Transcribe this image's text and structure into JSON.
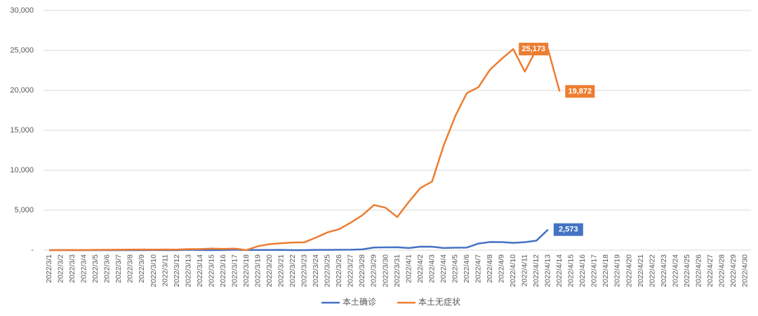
{
  "chart_data": {
    "type": "line",
    "categories": [
      "2022/3/1",
      "2022/3/2",
      "2022/3/3",
      "2022/3/4",
      "2022/3/5",
      "2022/3/6",
      "2022/3/7",
      "2022/3/8",
      "2022/3/9",
      "2022/3/10",
      "2022/3/11",
      "2022/3/12",
      "2022/3/13",
      "2022/3/14",
      "2022/3/15",
      "2022/3/16",
      "2022/3/17",
      "2022/3/18",
      "2022/3/19",
      "2022/3/20",
      "2022/3/21",
      "2022/3/22",
      "2022/3/23",
      "2022/3/24",
      "2022/3/25",
      "2022/3/26",
      "2022/3/27",
      "2022/3/28",
      "2022/3/29",
      "2022/3/30",
      "2022/3/31",
      "2022/4/1",
      "2022/4/2",
      "2022/4/3",
      "2022/4/4",
      "2022/4/5",
      "2022/4/6",
      "2022/4/7",
      "2022/4/8",
      "2022/4/9",
      "2022/4/10",
      "2022/4/11",
      "2022/4/12",
      "2022/4/13",
      "2022/4/14",
      "2022/4/15",
      "2022/4/16",
      "2022/4/17",
      "2022/4/18",
      "2022/4/19",
      "2022/4/20",
      "2022/4/21",
      "2022/4/22",
      "2022/4/23",
      "2022/4/24",
      "2022/4/25",
      "2022/4/26",
      "2022/4/27",
      "2022/4/28",
      "2022/4/29",
      "2022/4/30"
    ],
    "series": [
      {
        "name": "本土确诊",
        "color": "#4472c4",
        "values": [
          2,
          8,
          2,
          3,
          2,
          3,
          3,
          3,
          4,
          11,
          5,
          1,
          41,
          9,
          5,
          8,
          57,
          8,
          17,
          24,
          31,
          4,
          4,
          29,
          38,
          45,
          50,
          96,
          326,
          355,
          358,
          260,
          438,
          425,
          268,
          311,
          322,
          824,
          1015,
          1006,
          914,
          994,
          1189,
          2573,
          null,
          null,
          null,
          null,
          null,
          null,
          null,
          null,
          null,
          null,
          null,
          null,
          null,
          null,
          null,
          null,
          null
        ],
        "value_labels": [
          null,
          null,
          null,
          null,
          null,
          null,
          null,
          null,
          null,
          null,
          null,
          null,
          null,
          null,
          null,
          null,
          null,
          null,
          null,
          null,
          null,
          null,
          null,
          null,
          null,
          null,
          null,
          null,
          null,
          null,
          null,
          null,
          null,
          null,
          null,
          null,
          null,
          null,
          null,
          null,
          null,
          null,
          null,
          "2,573",
          null,
          null,
          null,
          null,
          null,
          null,
          null,
          null,
          null,
          null,
          null,
          null,
          null,
          null,
          null,
          null,
          null
        ]
      },
      {
        "name": "本土无症状",
        "color": "#ed7d31",
        "values": [
          1,
          3,
          14,
          16,
          28,
          45,
          51,
          62,
          76,
          64,
          78,
          64,
          128,
          130,
          197,
          150,
          202,
          0,
          500,
          750,
          870,
          950,
          980,
          1580,
          2230,
          2630,
          3450,
          4380,
          5650,
          5300,
          4140,
          6050,
          7790,
          8580,
          13090,
          16770,
          19660,
          20400,
          22600,
          23940,
          25173,
          22350,
          25140,
          25150,
          19872,
          null,
          null,
          null,
          null,
          null,
          null,
          null,
          null,
          null,
          null,
          null,
          null,
          null,
          null,
          null,
          null
        ],
        "value_labels": [
          null,
          null,
          null,
          null,
          null,
          null,
          null,
          null,
          null,
          null,
          null,
          null,
          null,
          null,
          null,
          null,
          null,
          null,
          null,
          null,
          null,
          null,
          null,
          null,
          null,
          null,
          null,
          null,
          null,
          null,
          null,
          null,
          null,
          null,
          null,
          null,
          null,
          null,
          null,
          null,
          "25,173",
          null,
          null,
          null,
          "19,872",
          null,
          null,
          null,
          null,
          null,
          null,
          null,
          null,
          null,
          null,
          null,
          null,
          null,
          null,
          null,
          null
        ]
      }
    ],
    "ylim": [
      0,
      30000
    ],
    "yticks": [
      {
        "value": 0,
        "label": "-"
      },
      {
        "value": 5000,
        "label": "5,000"
      },
      {
        "value": 10000,
        "label": "10,000"
      },
      {
        "value": 15000,
        "label": "15,000"
      },
      {
        "value": 20000,
        "label": "20,000"
      },
      {
        "value": 25000,
        "label": "25,000"
      },
      {
        "value": 30000,
        "label": "30,000"
      }
    ],
    "grid": true,
    "legend": "bottom"
  }
}
